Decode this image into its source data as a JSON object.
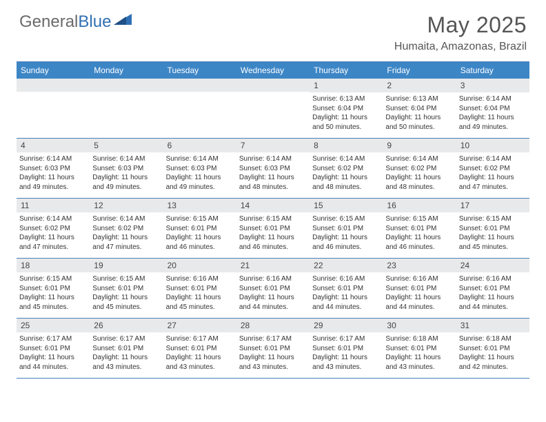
{
  "brand": {
    "part1": "General",
    "part2": "Blue"
  },
  "title": "May 2025",
  "location": "Humaita, Amazonas, Brazil",
  "colors": {
    "headerBlue": "#3d86c6",
    "ruleBlue": "#4a7fb8",
    "dayBarGray": "#e8e9ea",
    "textGray": "#555"
  },
  "daysOfWeek": [
    "Sunday",
    "Monday",
    "Tuesday",
    "Wednesday",
    "Thursday",
    "Friday",
    "Saturday"
  ],
  "weeks": [
    [
      {
        "empty": true
      },
      {
        "empty": true
      },
      {
        "empty": true
      },
      {
        "empty": true
      },
      {
        "num": "1",
        "sunrise": "Sunrise: 6:13 AM",
        "sunset": "Sunset: 6:04 PM",
        "daylight": "Daylight: 11 hours and 50 minutes."
      },
      {
        "num": "2",
        "sunrise": "Sunrise: 6:13 AM",
        "sunset": "Sunset: 6:04 PM",
        "daylight": "Daylight: 11 hours and 50 minutes."
      },
      {
        "num": "3",
        "sunrise": "Sunrise: 6:14 AM",
        "sunset": "Sunset: 6:04 PM",
        "daylight": "Daylight: 11 hours and 49 minutes."
      }
    ],
    [
      {
        "num": "4",
        "sunrise": "Sunrise: 6:14 AM",
        "sunset": "Sunset: 6:03 PM",
        "daylight": "Daylight: 11 hours and 49 minutes."
      },
      {
        "num": "5",
        "sunrise": "Sunrise: 6:14 AM",
        "sunset": "Sunset: 6:03 PM",
        "daylight": "Daylight: 11 hours and 49 minutes."
      },
      {
        "num": "6",
        "sunrise": "Sunrise: 6:14 AM",
        "sunset": "Sunset: 6:03 PM",
        "daylight": "Daylight: 11 hours and 49 minutes."
      },
      {
        "num": "7",
        "sunrise": "Sunrise: 6:14 AM",
        "sunset": "Sunset: 6:03 PM",
        "daylight": "Daylight: 11 hours and 48 minutes."
      },
      {
        "num": "8",
        "sunrise": "Sunrise: 6:14 AM",
        "sunset": "Sunset: 6:02 PM",
        "daylight": "Daylight: 11 hours and 48 minutes."
      },
      {
        "num": "9",
        "sunrise": "Sunrise: 6:14 AM",
        "sunset": "Sunset: 6:02 PM",
        "daylight": "Daylight: 11 hours and 48 minutes."
      },
      {
        "num": "10",
        "sunrise": "Sunrise: 6:14 AM",
        "sunset": "Sunset: 6:02 PM",
        "daylight": "Daylight: 11 hours and 47 minutes."
      }
    ],
    [
      {
        "num": "11",
        "sunrise": "Sunrise: 6:14 AM",
        "sunset": "Sunset: 6:02 PM",
        "daylight": "Daylight: 11 hours and 47 minutes."
      },
      {
        "num": "12",
        "sunrise": "Sunrise: 6:14 AM",
        "sunset": "Sunset: 6:02 PM",
        "daylight": "Daylight: 11 hours and 47 minutes."
      },
      {
        "num": "13",
        "sunrise": "Sunrise: 6:15 AM",
        "sunset": "Sunset: 6:01 PM",
        "daylight": "Daylight: 11 hours and 46 minutes."
      },
      {
        "num": "14",
        "sunrise": "Sunrise: 6:15 AM",
        "sunset": "Sunset: 6:01 PM",
        "daylight": "Daylight: 11 hours and 46 minutes."
      },
      {
        "num": "15",
        "sunrise": "Sunrise: 6:15 AM",
        "sunset": "Sunset: 6:01 PM",
        "daylight": "Daylight: 11 hours and 46 minutes."
      },
      {
        "num": "16",
        "sunrise": "Sunrise: 6:15 AM",
        "sunset": "Sunset: 6:01 PM",
        "daylight": "Daylight: 11 hours and 46 minutes."
      },
      {
        "num": "17",
        "sunrise": "Sunrise: 6:15 AM",
        "sunset": "Sunset: 6:01 PM",
        "daylight": "Daylight: 11 hours and 45 minutes."
      }
    ],
    [
      {
        "num": "18",
        "sunrise": "Sunrise: 6:15 AM",
        "sunset": "Sunset: 6:01 PM",
        "daylight": "Daylight: 11 hours and 45 minutes."
      },
      {
        "num": "19",
        "sunrise": "Sunrise: 6:15 AM",
        "sunset": "Sunset: 6:01 PM",
        "daylight": "Daylight: 11 hours and 45 minutes."
      },
      {
        "num": "20",
        "sunrise": "Sunrise: 6:16 AM",
        "sunset": "Sunset: 6:01 PM",
        "daylight": "Daylight: 11 hours and 45 minutes."
      },
      {
        "num": "21",
        "sunrise": "Sunrise: 6:16 AM",
        "sunset": "Sunset: 6:01 PM",
        "daylight": "Daylight: 11 hours and 44 minutes."
      },
      {
        "num": "22",
        "sunrise": "Sunrise: 6:16 AM",
        "sunset": "Sunset: 6:01 PM",
        "daylight": "Daylight: 11 hours and 44 minutes."
      },
      {
        "num": "23",
        "sunrise": "Sunrise: 6:16 AM",
        "sunset": "Sunset: 6:01 PM",
        "daylight": "Daylight: 11 hours and 44 minutes."
      },
      {
        "num": "24",
        "sunrise": "Sunrise: 6:16 AM",
        "sunset": "Sunset: 6:01 PM",
        "daylight": "Daylight: 11 hours and 44 minutes."
      }
    ],
    [
      {
        "num": "25",
        "sunrise": "Sunrise: 6:17 AM",
        "sunset": "Sunset: 6:01 PM",
        "daylight": "Daylight: 11 hours and 44 minutes."
      },
      {
        "num": "26",
        "sunrise": "Sunrise: 6:17 AM",
        "sunset": "Sunset: 6:01 PM",
        "daylight": "Daylight: 11 hours and 43 minutes."
      },
      {
        "num": "27",
        "sunrise": "Sunrise: 6:17 AM",
        "sunset": "Sunset: 6:01 PM",
        "daylight": "Daylight: 11 hours and 43 minutes."
      },
      {
        "num": "28",
        "sunrise": "Sunrise: 6:17 AM",
        "sunset": "Sunset: 6:01 PM",
        "daylight": "Daylight: 11 hours and 43 minutes."
      },
      {
        "num": "29",
        "sunrise": "Sunrise: 6:17 AM",
        "sunset": "Sunset: 6:01 PM",
        "daylight": "Daylight: 11 hours and 43 minutes."
      },
      {
        "num": "30",
        "sunrise": "Sunrise: 6:18 AM",
        "sunset": "Sunset: 6:01 PM",
        "daylight": "Daylight: 11 hours and 43 minutes."
      },
      {
        "num": "31",
        "sunrise": "Sunrise: 6:18 AM",
        "sunset": "Sunset: 6:01 PM",
        "daylight": "Daylight: 11 hours and 42 minutes."
      }
    ]
  ]
}
